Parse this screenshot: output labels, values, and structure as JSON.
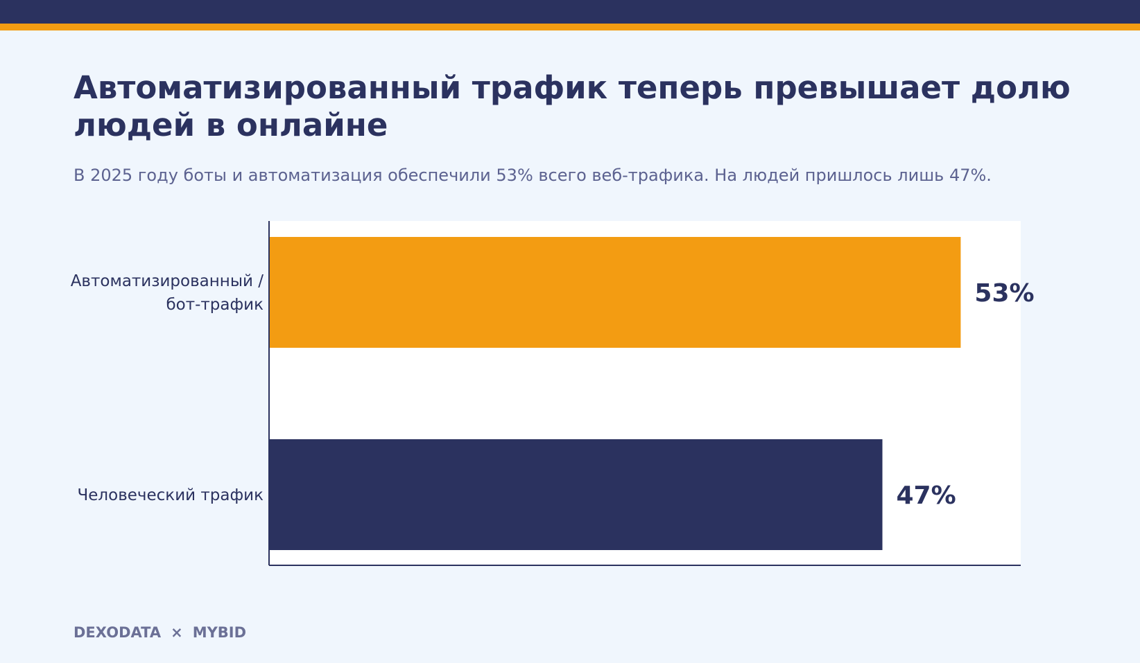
{
  "header": {
    "title": "Автоматизированный трафик теперь превышает долю людей в онлайне",
    "subtitle": "В 2025 году боты и автоматизация обеспечили 53% всего веб-трафика. На людей пришлось лишь 47%."
  },
  "colors": {
    "background": "#f0f6fd",
    "navy": "#2b325f",
    "orange": "#f39c12",
    "plot_background": "#ffffff",
    "subtitle_text": "#5c6290"
  },
  "chart_data": {
    "type": "bar",
    "orientation": "horizontal",
    "categories": [
      "Автоматизированный / бот-трафик",
      "Человеческий трафик"
    ],
    "category_lines": [
      [
        "Автоматизированный /",
        "бот-трафик"
      ],
      [
        "Человеческий трафик"
      ]
    ],
    "values": [
      53,
      47
    ],
    "data_labels": [
      "53%",
      "47%"
    ],
    "bar_colors": [
      "#f39c12",
      "#2b325f"
    ],
    "xlim": [
      0,
      57.6
    ],
    "grid": false,
    "legend": "none"
  },
  "footer": {
    "brand_left": "DEXODATA",
    "separator": "×",
    "brand_right": "MYBID"
  }
}
